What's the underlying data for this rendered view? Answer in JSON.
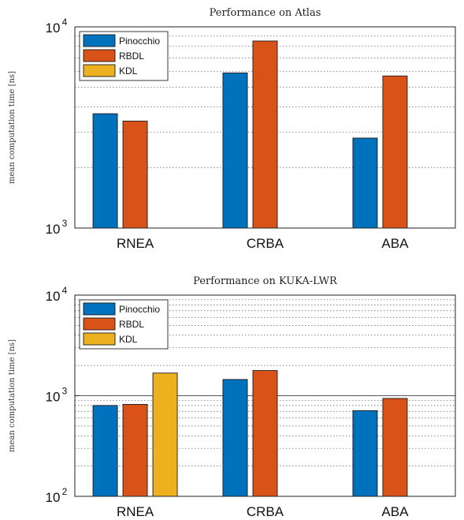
{
  "chart_data": [
    {
      "type": "bar",
      "title": "Performance on Atlas",
      "ylabel": "mean computation time [ns]",
      "xlabel": "",
      "yscale": "log",
      "ylim": [
        1000,
        10000
      ],
      "ytick_labels": [
        {
          "base": "10",
          "exp": "3"
        },
        {
          "base": "10",
          "exp": "4"
        }
      ],
      "grid": "y-minor-dotted",
      "legend": "top-left",
      "categories": [
        "RNEA",
        "CRBA",
        "ABA"
      ],
      "series": [
        {
          "name": "Pinocchio",
          "color": "#0072bd",
          "values": [
            3700,
            5900,
            2800
          ]
        },
        {
          "name": "RBDL",
          "color": "#d95319",
          "values": [
            3400,
            8500,
            5700
          ]
        },
        {
          "name": "KDL",
          "color": "#edb120",
          "values": [
            null,
            null,
            null
          ]
        }
      ]
    },
    {
      "type": "bar",
      "title": "Performance on KUKA-LWR",
      "ylabel": "mean computation time [ns]",
      "xlabel": "",
      "yscale": "log",
      "ylim": [
        100,
        10000
      ],
      "ytick_labels": [
        {
          "base": "10",
          "exp": "2"
        },
        {
          "base": "10",
          "exp": "3"
        },
        {
          "base": "10",
          "exp": "4"
        }
      ],
      "grid": "y-minor-dotted",
      "legend": "top-left",
      "categories": [
        "RNEA",
        "CRBA",
        "ABA"
      ],
      "series": [
        {
          "name": "Pinocchio",
          "color": "#0072bd",
          "values": [
            800,
            1450,
            710
          ]
        },
        {
          "name": "RBDL",
          "color": "#d95319",
          "values": [
            820,
            1780,
            940
          ]
        },
        {
          "name": "KDL",
          "color": "#edb120",
          "values": [
            1680,
            null,
            null
          ]
        }
      ]
    }
  ]
}
